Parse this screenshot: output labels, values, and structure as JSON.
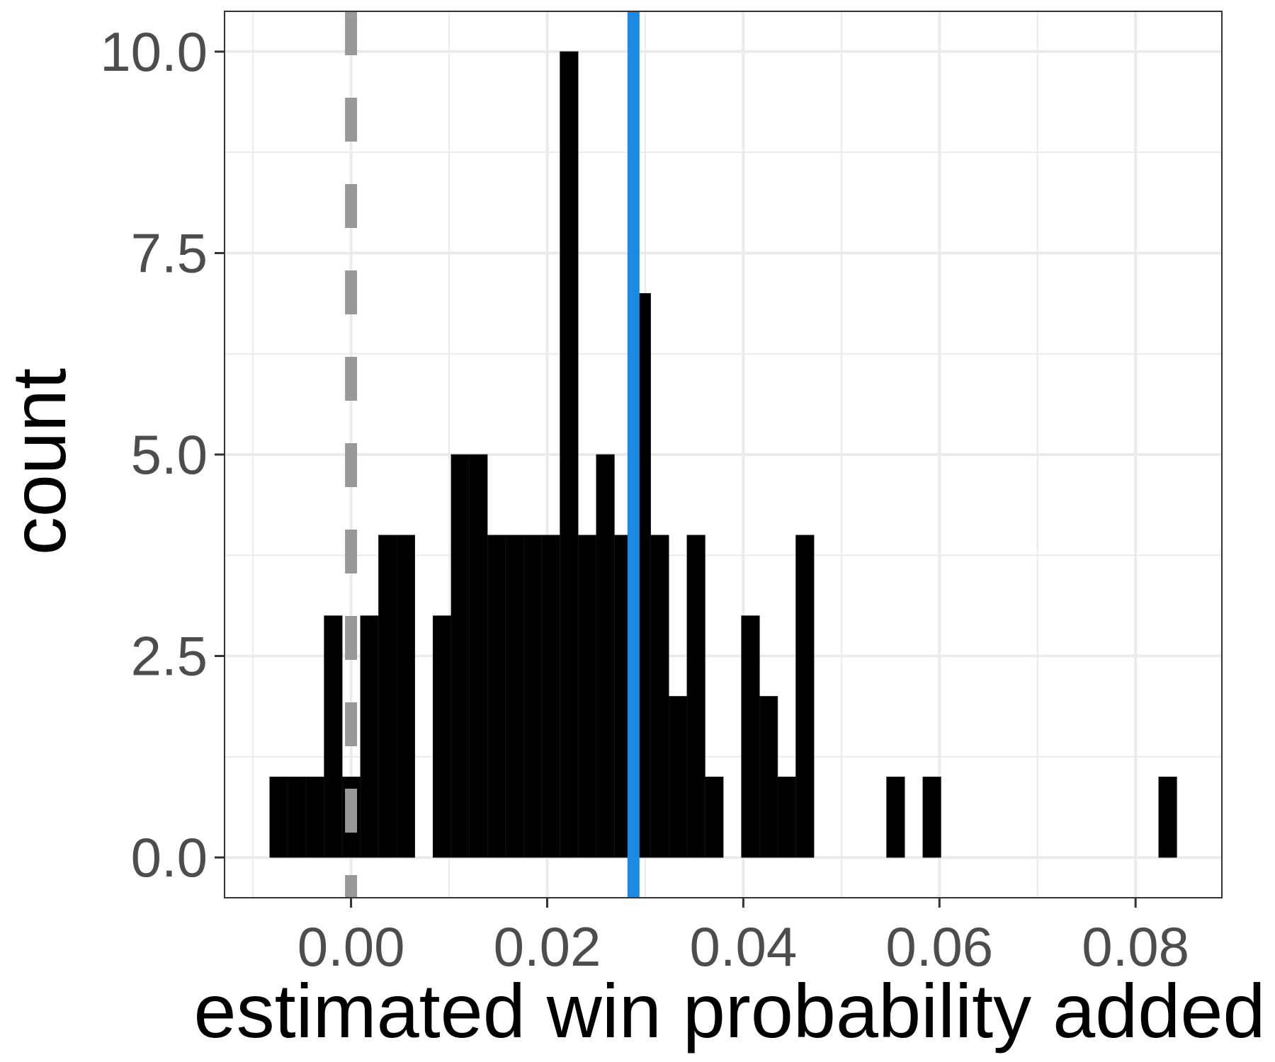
{
  "chart_data": {
    "type": "bar",
    "xlabel": "estimated win probability added",
    "ylabel": "count",
    "xlim": [
      -0.0129,
      0.0888
    ],
    "ylim": [
      -0.5,
      10.5
    ],
    "x_ticks": [
      0.0,
      0.02,
      0.04,
      0.06,
      0.08
    ],
    "x_tick_labels": [
      "0.00",
      "0.02",
      "0.04",
      "0.06",
      "0.08"
    ],
    "x_minor_ticks": [
      -0.01,
      0.01,
      0.03,
      0.05,
      0.07
    ],
    "y_ticks": [
      0,
      2.5,
      5,
      7.5,
      10
    ],
    "y_tick_labels": [
      "0.0",
      "2.5",
      "5.0",
      "7.5",
      "10.0"
    ],
    "y_minor_ticks": [
      1.25,
      3.75,
      6.25,
      8.75
    ],
    "grid": true,
    "bin_width": 0.00185,
    "bins": [
      {
        "x": -0.00737,
        "count": 1
      },
      {
        "x": -0.00552,
        "count": 1
      },
      {
        "x": -0.00367,
        "count": 1
      },
      {
        "x": -0.00182,
        "count": 3
      },
      {
        "x": 3e-05,
        "count": 1
      },
      {
        "x": 0.00188,
        "count": 3
      },
      {
        "x": 0.00373,
        "count": 4
      },
      {
        "x": 0.00558,
        "count": 4
      },
      {
        "x": 0.00743,
        "count": 0
      },
      {
        "x": 0.00928,
        "count": 3
      },
      {
        "x": 0.01113,
        "count": 5
      },
      {
        "x": 0.01298,
        "count": 5
      },
      {
        "x": 0.01483,
        "count": 4
      },
      {
        "x": 0.01668,
        "count": 4
      },
      {
        "x": 0.01853,
        "count": 4
      },
      {
        "x": 0.02038,
        "count": 4
      },
      {
        "x": 0.02223,
        "count": 10
      },
      {
        "x": 0.02408,
        "count": 4
      },
      {
        "x": 0.02593,
        "count": 5
      },
      {
        "x": 0.02778,
        "count": 4
      },
      {
        "x": 0.02963,
        "count": 7
      },
      {
        "x": 0.03148,
        "count": 4
      },
      {
        "x": 0.03333,
        "count": 2
      },
      {
        "x": 0.03518,
        "count": 4
      },
      {
        "x": 0.03703,
        "count": 1
      },
      {
        "x": 0.03888,
        "count": 0
      },
      {
        "x": 0.04073,
        "count": 3
      },
      {
        "x": 0.04258,
        "count": 2
      },
      {
        "x": 0.04443,
        "count": 1
      },
      {
        "x": 0.04628,
        "count": 4
      },
      {
        "x": 0.05553,
        "count": 1
      },
      {
        "x": 0.05923,
        "count": 1
      },
      {
        "x": 0.08328,
        "count": 1
      }
    ],
    "reference_lines": [
      {
        "x": 0.0,
        "style": "dashed",
        "color": "#999999"
      },
      {
        "x": 0.0288,
        "style": "solid",
        "color": "#1e88e5"
      }
    ],
    "colors": {
      "bars": "#000000",
      "grid": "#ebebeb",
      "panel_border": "#333333",
      "tick_text": "#4d4d4d"
    }
  }
}
